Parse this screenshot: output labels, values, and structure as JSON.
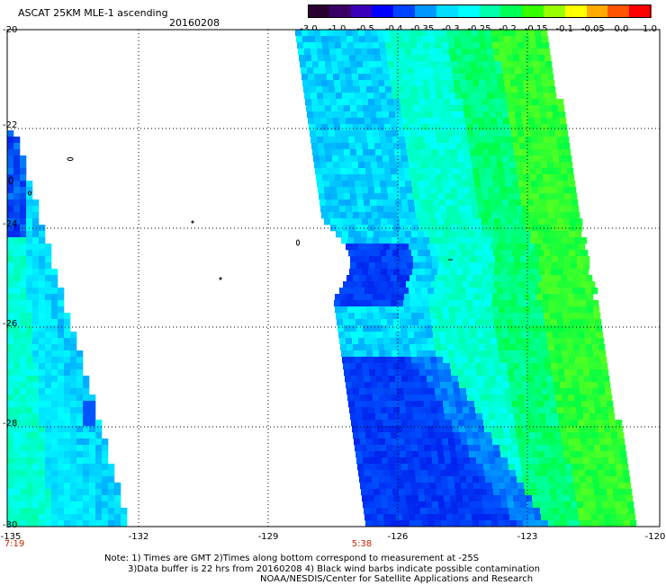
{
  "header": {
    "title": "ASCAT 25KM MLE-1 ascending",
    "date": "20160208"
  },
  "colorbar": {
    "colors": [
      "#2a0033",
      "#3a0066",
      "#3b00b8",
      "#0000ff",
      "#0044ff",
      "#0099ff",
      "#00ddff",
      "#00ffff",
      "#00ffaa",
      "#00ff55",
      "#33ff00",
      "#99ff00",
      "#ffff00",
      "#ffaa00",
      "#ff5500",
      "#ff0000"
    ],
    "labels": [
      "-3.0",
      "-1.0",
      "-0.5",
      "-0.4",
      "-0.35",
      "-0.3",
      "-0.25",
      "-0.2",
      "-0.15",
      "-0.1",
      "-0.05",
      "0.0",
      "1.0"
    ]
  },
  "axes": {
    "lat_labels": [
      "-20",
      "-22",
      "-24",
      "-26",
      "-28",
      "-30"
    ],
    "lon_labels": [
      "-135",
      "-132",
      "-129",
      "-126",
      "-123",
      "-120"
    ]
  },
  "times": {
    "left": "7:19",
    "right": "5:38",
    "color": "#cc2200"
  },
  "notes": {
    "line1": "Note: 1) Times are GMT 2)Times along bottom correspond to measurement at -25S",
    "line2": "3)Data buffer is 22 hrs from 20160208 4) Black wind barbs indicate possible contamination",
    "line3": "NOAA/NESDIS/Center for Satellite Applications and Research"
  },
  "legend_palette": {
    "deep_blue": "#0022ee",
    "blue": "#0055ff",
    "light_blue": "#00aaff",
    "cyan": "#00ffff",
    "aqua_green": "#00ffaa",
    "green": "#00ff44",
    "yellow_green": "#aaff00"
  }
}
